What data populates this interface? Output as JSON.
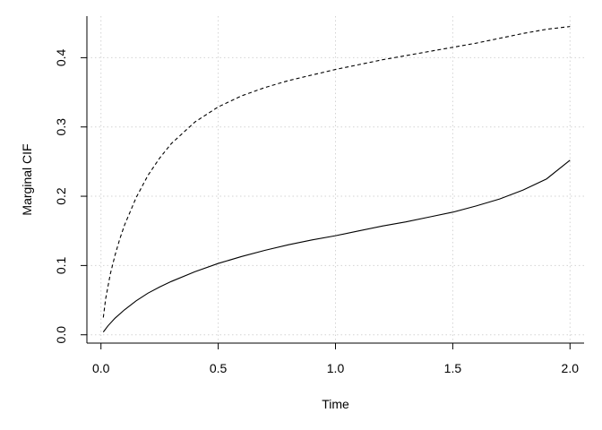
{
  "chart_data": {
    "type": "line",
    "title": "",
    "xlabel": "Time",
    "ylabel": "Marginal CIF",
    "xlim": [
      -0.06,
      2.06
    ],
    "ylim": [
      -0.012,
      0.46
    ],
    "x_ticks": [
      0.0,
      0.5,
      1.0,
      1.5,
      2.0
    ],
    "y_ticks": [
      0.0,
      0.1,
      0.2,
      0.3,
      0.4
    ],
    "grid": true,
    "legend": "none",
    "series": [
      {
        "line_style": "dashed",
        "color": "#000000",
        "x": [
          0.01,
          0.02,
          0.04,
          0.06,
          0.08,
          0.1,
          0.15,
          0.2,
          0.25,
          0.3,
          0.4,
          0.5,
          0.6,
          0.7,
          0.8,
          0.9,
          1.0,
          1.1,
          1.2,
          1.3,
          1.4,
          1.5,
          1.6,
          1.7,
          1.8,
          1.9,
          2.0
        ],
        "y": [
          0.025,
          0.052,
          0.088,
          0.115,
          0.138,
          0.158,
          0.198,
          0.23,
          0.255,
          0.276,
          0.307,
          0.329,
          0.345,
          0.357,
          0.367,
          0.375,
          0.383,
          0.39,
          0.397,
          0.403,
          0.409,
          0.415,
          0.421,
          0.428,
          0.435,
          0.441,
          0.445
        ]
      },
      {
        "line_style": "solid",
        "color": "#000000",
        "x": [
          0.01,
          0.03,
          0.06,
          0.1,
          0.15,
          0.2,
          0.25,
          0.3,
          0.4,
          0.5,
          0.6,
          0.7,
          0.8,
          0.9,
          1.0,
          1.1,
          1.2,
          1.3,
          1.4,
          1.5,
          1.6,
          1.7,
          1.8,
          1.9,
          2.0
        ],
        "y": [
          0.004,
          0.013,
          0.024,
          0.036,
          0.049,
          0.06,
          0.069,
          0.077,
          0.091,
          0.103,
          0.113,
          0.122,
          0.13,
          0.137,
          0.143,
          0.15,
          0.157,
          0.163,
          0.17,
          0.177,
          0.186,
          0.196,
          0.209,
          0.225,
          0.252
        ]
      }
    ]
  }
}
